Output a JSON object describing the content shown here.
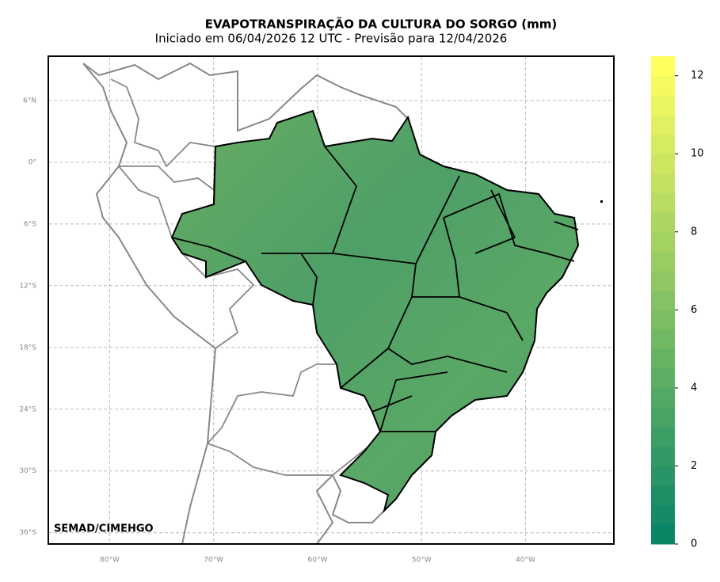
{
  "map": {
    "title": "EVAPOTRANSPIRAÇÃO DA CULTURA DO SORGO (mm)",
    "subtitle": "Iniciado em 06/04/2026 12 UTC - Previsão para 12/04/2026",
    "credit": "SEMAD/CIMEHGO",
    "xlim": [
      -85.9,
      -31.5
    ],
    "ylim": [
      -37.1,
      10.3
    ],
    "xticks": [
      {
        "value": -80,
        "label": "80°W"
      },
      {
        "value": -70,
        "label": "70°W"
      },
      {
        "value": -60,
        "label": "60°W"
      },
      {
        "value": -50,
        "label": "50°W"
      },
      {
        "value": -40,
        "label": "40°W"
      }
    ],
    "yticks": [
      {
        "value": 6,
        "label": "6°N"
      },
      {
        "value": 0,
        "label": "0°"
      },
      {
        "value": -6,
        "label": "6°S"
      },
      {
        "value": -12,
        "label": "12°S"
      },
      {
        "value": -18,
        "label": "18°S"
      },
      {
        "value": -24,
        "label": "24°S"
      },
      {
        "value": -30,
        "label": "30°S"
      },
      {
        "value": -36,
        "label": "36°S"
      }
    ],
    "grid": true,
    "colorbar": {
      "lim": [
        0,
        12.5
      ],
      "ticks": [
        0,
        2,
        4,
        6,
        8,
        10,
        12
      ],
      "step": 0.5,
      "colors": [
        "#0a8566",
        "#ffff5f"
      ]
    }
  }
}
